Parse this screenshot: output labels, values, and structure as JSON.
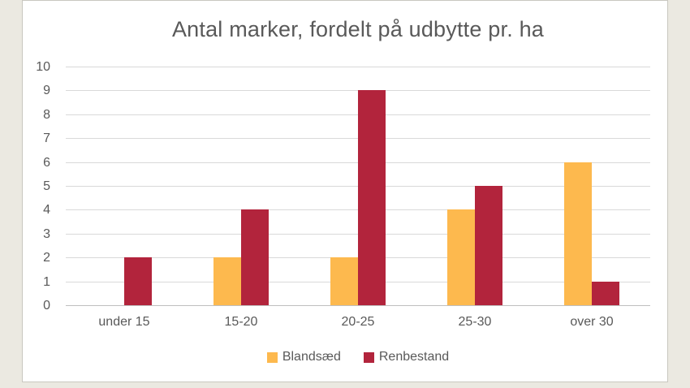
{
  "chart_data": {
    "type": "bar",
    "title": "Antal marker, fordelt på udbytte pr. ha",
    "categories": [
      "under 15",
      "15-20",
      "20-25",
      "25-30",
      "over 30"
    ],
    "series": [
      {
        "name": "Blandsæd",
        "color": "#FDB94E",
        "values": [
          0,
          2,
          2,
          4,
          6
        ]
      },
      {
        "name": "Renbestand",
        "color": "#B2243C",
        "values": [
          2,
          4,
          9,
          5,
          1
        ]
      }
    ],
    "ylim": [
      0,
      10
    ],
    "ytick_step": 1,
    "yticks": [
      0,
      1,
      2,
      3,
      4,
      5,
      6,
      7,
      8,
      9,
      10
    ],
    "xlabel": "",
    "ylabel": "",
    "grid": true,
    "legend_position": "bottom"
  },
  "colors": {
    "background": "#EBE9E1",
    "panel": "#FFFFFF",
    "panel_border": "#C9C7C0",
    "text": "#595959",
    "gridline": "#D9D9D9",
    "axis_line": "#BFBFBF"
  }
}
